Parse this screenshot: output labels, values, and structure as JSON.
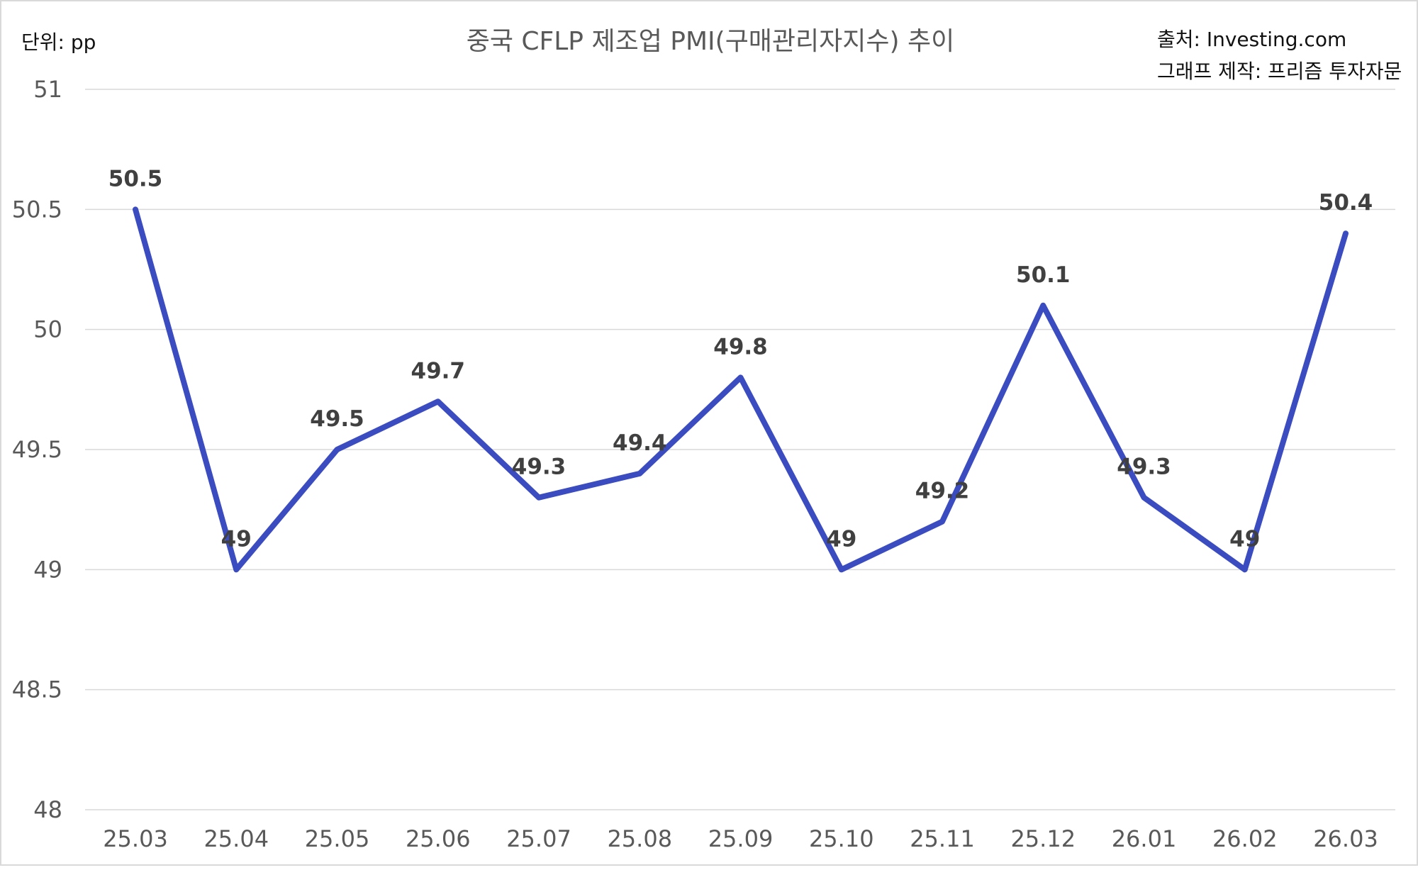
{
  "chart_data": {
    "type": "line",
    "title": "중국 CFLP 제조업 PMI(구매관리자지수) 추이",
    "unit_label": "단위: pp",
    "source": "출처: Investing.com",
    "credit": "그래프 제작: 프리즘 투자자문",
    "categories": [
      "25.03",
      "25.04",
      "25.05",
      "25.06",
      "25.07",
      "25.08",
      "25.09",
      "25.10",
      "25.11",
      "25.12",
      "26.01",
      "26.02",
      "26.03"
    ],
    "series": [
      {
        "values": [
          50.5,
          49,
          49.5,
          49.7,
          49.3,
          49.4,
          49.8,
          49,
          49.2,
          50.1,
          49.3,
          49,
          50.4
        ]
      }
    ],
    "data_labels": [
      "50.5",
      "49",
      "49.5",
      "49.7",
      "49.3",
      "49.4",
      "49.8",
      "49",
      "49.2",
      "50.1",
      "49.3",
      "49",
      "50.4"
    ],
    "ylim": [
      48,
      51
    ],
    "yticks": [
      "48",
      "48.5",
      "49",
      "49.5",
      "50",
      "50.5",
      "51"
    ],
    "grid": true,
    "line_color": "#3a4cc0"
  }
}
